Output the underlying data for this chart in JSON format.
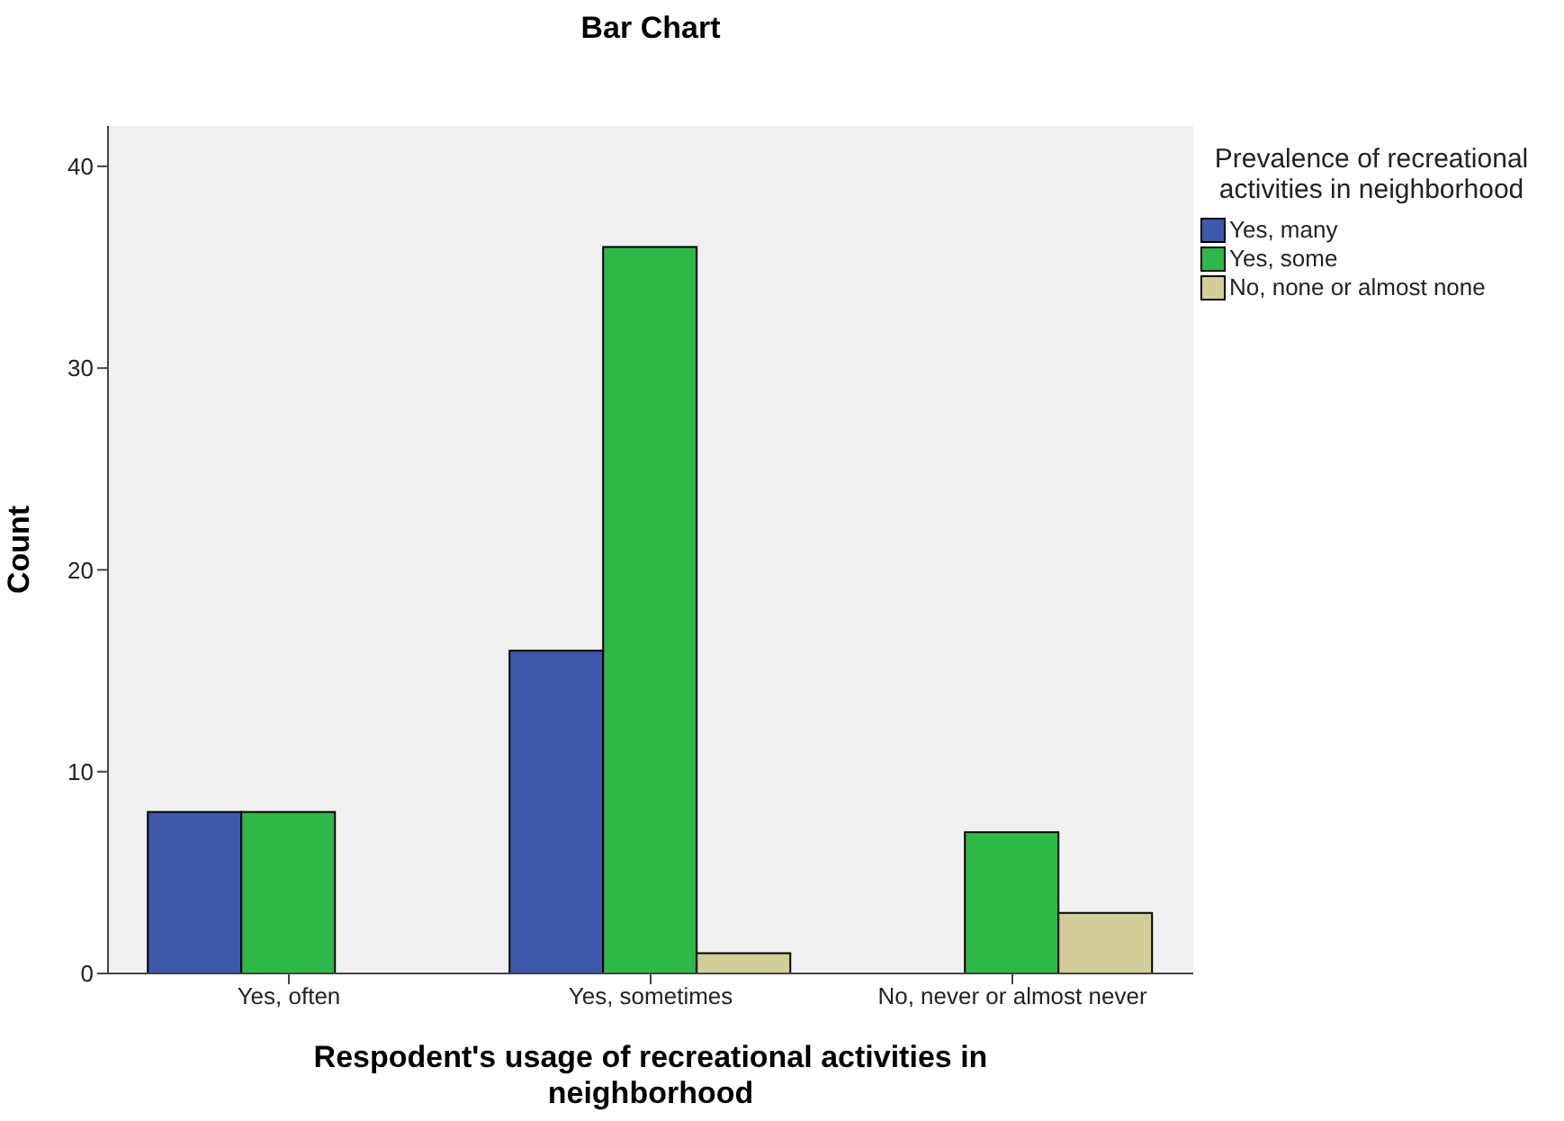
{
  "chart_data": {
    "type": "bar",
    "title": "Bar Chart",
    "xlabel": "Respodent's usage of recreational activities in neighborhood",
    "ylabel": "Count",
    "legend_title": "Prevalence of recreational activities in neighborhood",
    "categories": [
      "Yes, often",
      "Yes, sometimes",
      "No, never or almost never"
    ],
    "series": [
      {
        "name": "Yes, many",
        "color": "#3e58ac",
        "values": [
          8,
          16,
          0
        ]
      },
      {
        "name": "Yes, some",
        "color": "#2eb848",
        "values": [
          8,
          36,
          7
        ]
      },
      {
        "name": "No, none or almost none",
        "color": "#d3ce97",
        "values": [
          0,
          1,
          3
        ]
      }
    ],
    "ylim": [
      0,
      42
    ],
    "yticks": [
      0,
      10,
      20,
      30,
      40
    ],
    "grid": false,
    "legend": "right"
  }
}
